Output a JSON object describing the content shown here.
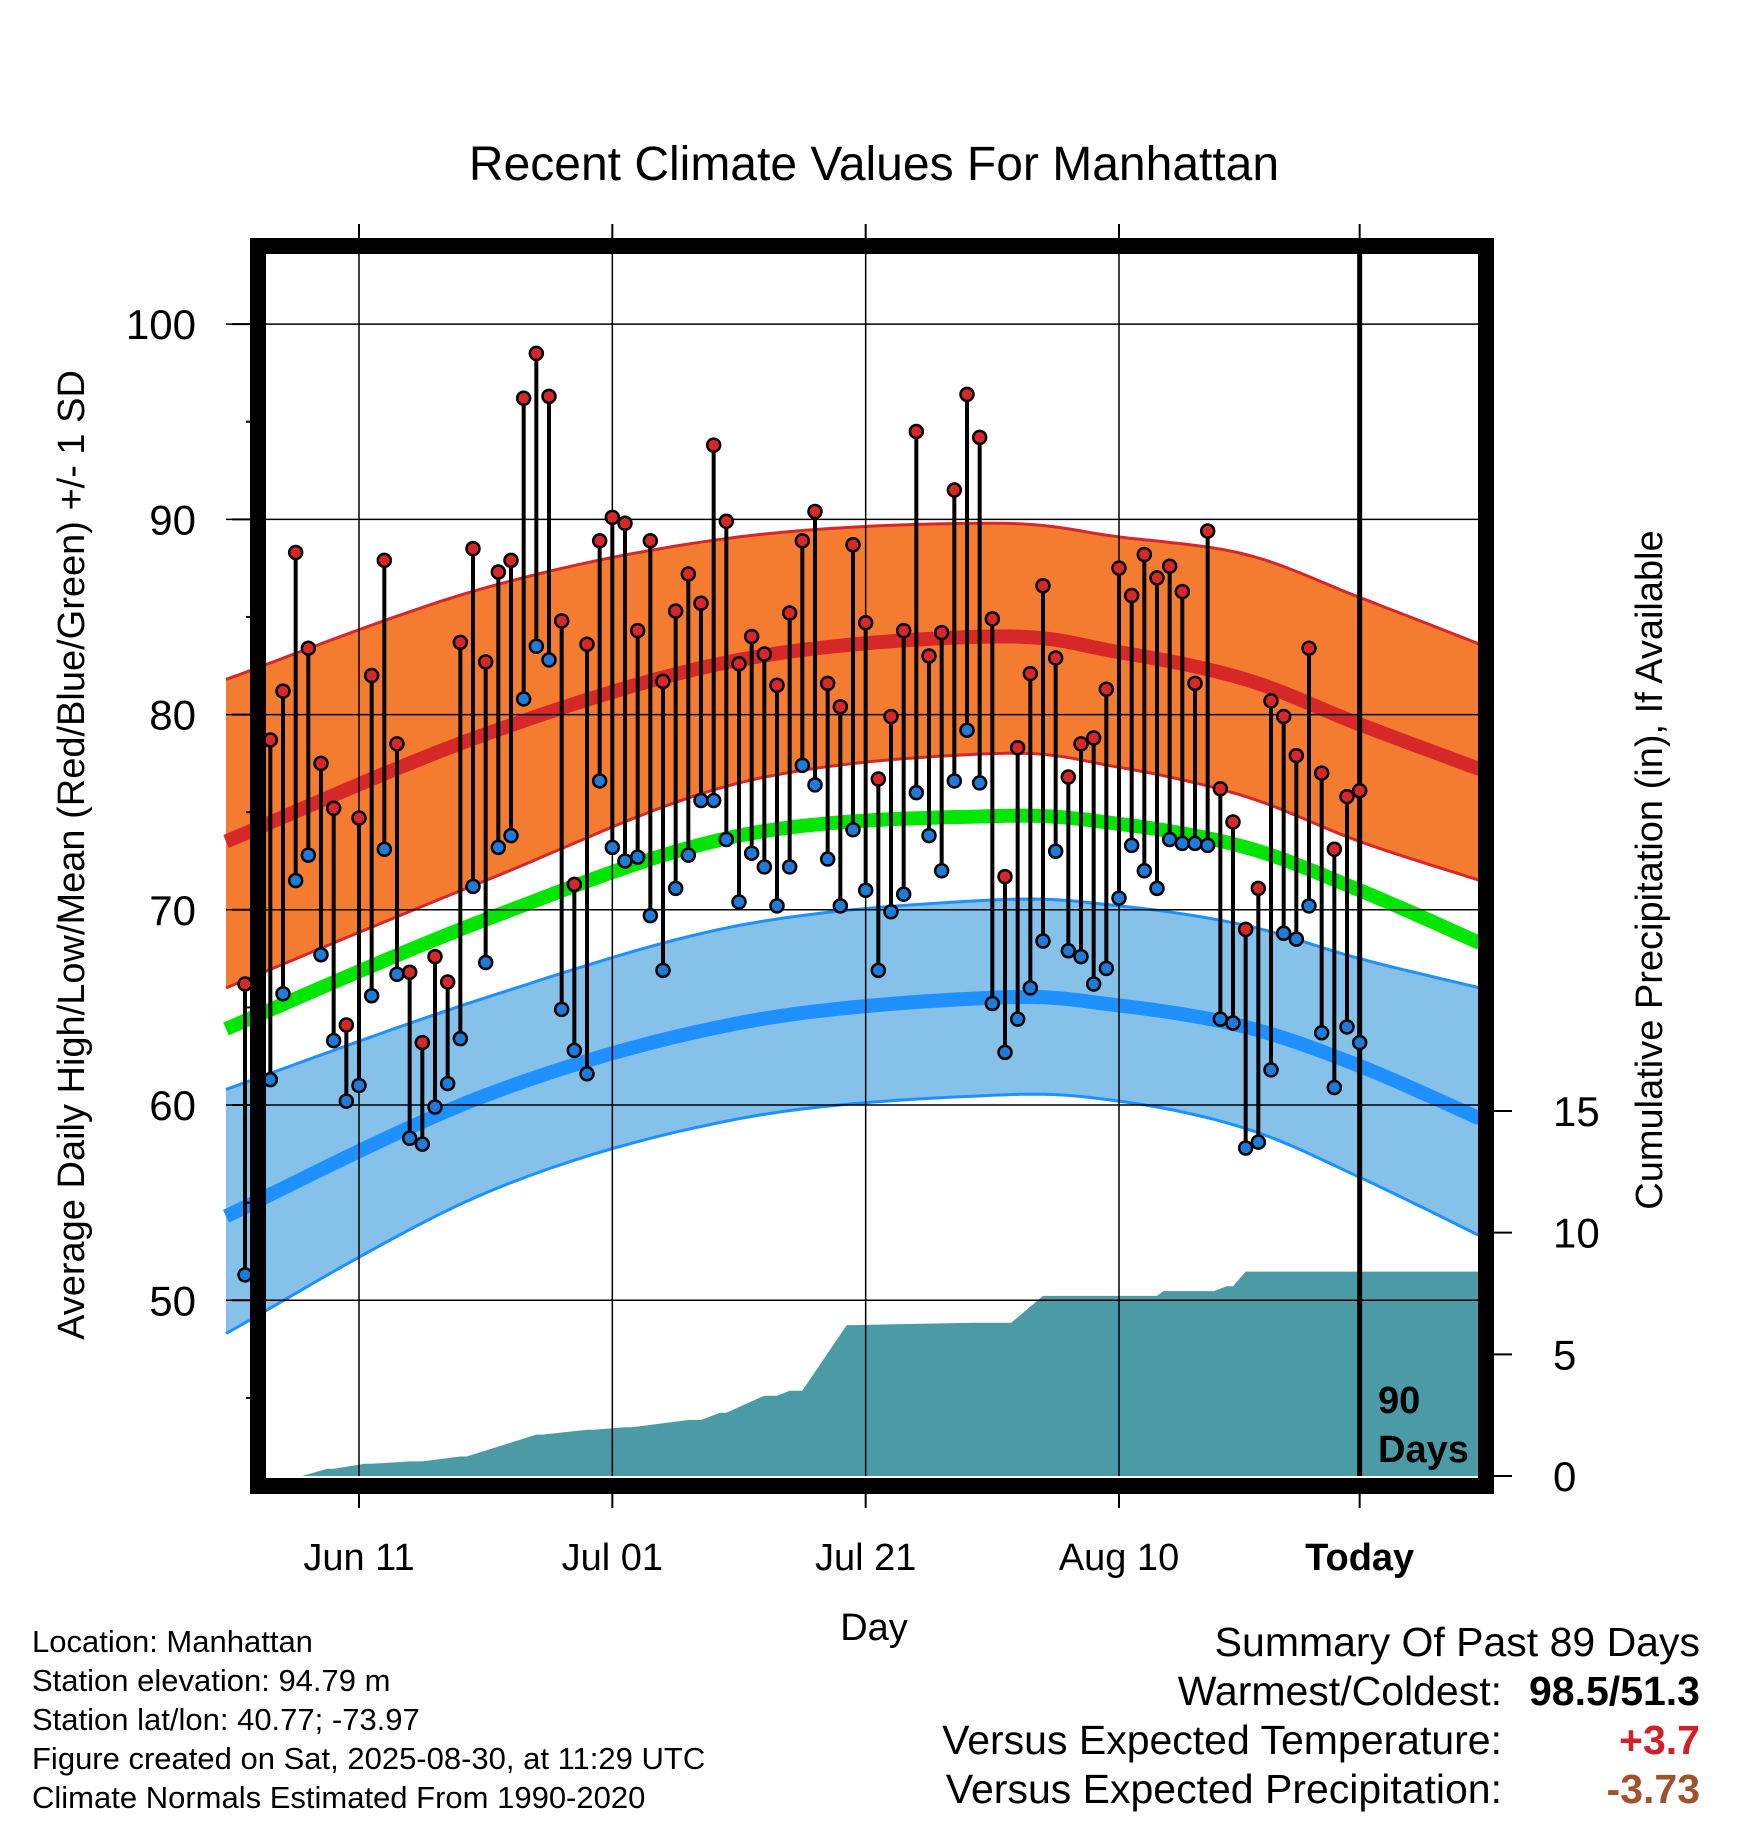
{
  "chart_data": {
    "type": "line",
    "title": "Recent Climate Values For Manhattan",
    "xlabel": "Day",
    "ylabel": "Average Daily High/Low/Mean (Red/Blue/Green) +/- 1 SD",
    "y2label": "Cumulative Precipitation (in), If Available",
    "x_range_days": [
      -89.5,
      9.5
    ],
    "ylim": [
      41,
      104
    ],
    "y2lim": [
      0,
      15
    ],
    "x_tick_days": [
      -79,
      -59,
      -39,
      -19,
      0
    ],
    "x_tick_labels": [
      "Jun 11",
      "Jul 01",
      "Jul 21",
      "Aug 10",
      "Today"
    ],
    "y_ticks": [
      50,
      60,
      70,
      80,
      90,
      100
    ],
    "y2_ticks": [
      0,
      5,
      10,
      15
    ],
    "today_marker_label": "90\nDays",
    "colors": {
      "high_band": "#f47c30",
      "high_band_edge": "#d62828",
      "high_mean": "#d62828",
      "low_band": "#85c1e9",
      "low_band_edge": "#1e90ff",
      "low_mean": "#1e90ff",
      "mean": "#00e600",
      "precip": "#4a9ba6",
      "high_point": "#d62828",
      "low_point": "#1e7bd8"
    },
    "normals": {
      "x_days": [
        -89.5,
        -69,
        -49,
        -29,
        -19,
        -9,
        0,
        9.5
      ],
      "high_mean": [
        73.5,
        79.0,
        82.8,
        84.0,
        83.2,
        81.8,
        79.5,
        77.2
      ],
      "high_sd_upper": [
        81.8,
        86.5,
        89.1,
        89.8,
        89.1,
        88.2,
        86.0,
        83.6
      ],
      "high_sd_lower": [
        66.0,
        71.5,
        76.5,
        78.0,
        77.3,
        75.8,
        73.5,
        71.5
      ],
      "low_mean": [
        54.3,
        60.5,
        64.2,
        65.5,
        65.1,
        64.0,
        62.0,
        59.3
      ],
      "low_sd_upper": [
        60.8,
        65.5,
        69.2,
        70.5,
        70.2,
        69.2,
        67.5,
        66.0
      ],
      "low_sd_lower": [
        48.3,
        55.5,
        59.3,
        60.5,
        60.2,
        58.8,
        56.3,
        53.3
      ],
      "daily_mean": [
        63.9,
        69.5,
        73.8,
        74.8,
        74.4,
        73.2,
        71.0,
        68.3
      ]
    },
    "series": [
      {
        "name": "High",
        "values": [
          66.2,
          72.1,
          78.7,
          81.2,
          88.3,
          83.4,
          77.5,
          75.2,
          64.1,
          74.7,
          82.0,
          87.9,
          78.5,
          66.8,
          63.2,
          67.6,
          66.3,
          83.7,
          88.5,
          82.7,
          87.3,
          87.9,
          96.2,
          98.5,
          96.3,
          84.8,
          71.3,
          83.6,
          88.9,
          90.1,
          89.8,
          84.3,
          88.9,
          81.7,
          85.3,
          87.2,
          85.7,
          93.8,
          89.9,
          82.6,
          84.0,
          83.1,
          81.5,
          85.2,
          88.9,
          90.4,
          81.6,
          80.4,
          88.7,
          84.7,
          76.7,
          79.9,
          84.3,
          94.5,
          83.0,
          84.2,
          91.5,
          96.4,
          94.2,
          84.9,
          71.7,
          78.3,
          82.1,
          86.6,
          82.9,
          76.8,
          78.5,
          78.8,
          81.3,
          87.5,
          86.1,
          88.2,
          87.0,
          87.6,
          86.3,
          81.6,
          89.4,
          76.2,
          74.5,
          69.0,
          71.1,
          80.7,
          79.9,
          77.9,
          83.4,
          77.0,
          73.1,
          75.8,
          76.1
        ]
      },
      {
        "name": "Low",
        "values": [
          51.3,
          56.3,
          61.3,
          65.7,
          71.5,
          72.8,
          67.7,
          63.3,
          60.2,
          61.0,
          65.6,
          73.1,
          66.7,
          58.3,
          58.0,
          59.9,
          61.1,
          63.4,
          71.2,
          67.3,
          73.2,
          73.8,
          80.8,
          83.5,
          82.8,
          64.9,
          62.8,
          61.6,
          76.6,
          73.2,
          72.5,
          72.7,
          69.7,
          66.9,
          71.1,
          72.8,
          75.6,
          75.6,
          73.6,
          70.4,
          72.9,
          72.2,
          70.2,
          72.2,
          77.4,
          76.4,
          72.6,
          70.2,
          74.1,
          71.0,
          66.9,
          69.9,
          70.8,
          76.0,
          73.8,
          72.0,
          76.6,
          79.2,
          76.5,
          65.2,
          62.7,
          64.4,
          66.0,
          68.4,
          73.0,
          67.9,
          67.6,
          66.2,
          67.0,
          70.6,
          73.3,
          72.0,
          71.1,
          73.6,
          73.4,
          73.4,
          73.3,
          64.4,
          64.2,
          57.8,
          58.1,
          61.8,
          68.8,
          68.5,
          70.2,
          63.7,
          60.9,
          64.0,
          63.2
        ]
      }
    ],
    "precip_cumulative": {
      "x_days": [
        -89.5,
        -83.5,
        -81.5,
        -81.0,
        -78.5,
        -78.0,
        -75.0,
        -74.0,
        -71.0,
        -70.5,
        -65.0,
        -64.5,
        -61.0,
        -60.5,
        -58.0,
        -57.5,
        -53.0,
        -52.0,
        -50.5,
        -50.0,
        -47.0,
        -46.0,
        -45.0,
        -44.0,
        -40.5,
        -40.0,
        -30.5,
        -30.0,
        -28.5,
        -27.5,
        -25.0,
        -24.0,
        -16.5,
        -16.0,
        -15.5,
        -14.5,
        -12.0,
        -11.5,
        -10.5,
        -10.0,
        -9.0,
        -8.0,
        9.5
      ],
      "values": [
        0.0,
        0.0,
        0.3,
        0.3,
        0.5,
        0.5,
        0.6,
        0.6,
        0.8,
        0.8,
        1.7,
        1.7,
        1.9,
        1.9,
        2.0,
        2.0,
        2.3,
        2.3,
        2.6,
        2.6,
        3.3,
        3.3,
        3.5,
        3.5,
        6.2,
        6.2,
        6.3,
        6.3,
        6.3,
        6.3,
        7.4,
        7.4,
        7.4,
        7.4,
        7.6,
        7.6,
        7.6,
        7.6,
        7.8,
        7.8,
        8.4,
        8.4,
        8.4
      ]
    }
  },
  "info": {
    "location": "Location: Manhattan",
    "elevation": "Station elevation: 94.79 m",
    "latlon": "Station lat/lon: 40.77; -73.97",
    "created": "Figure created on Sat, 2025-08-30, at 11:29 UTC",
    "normals": "Climate Normals Estimated From 1990-2020"
  },
  "summary": {
    "heading": "Summary Of Past 89 Days",
    "warmest_coldest_label": "Warmest/Coldest:",
    "warmest_coldest_value": "98.5/51.3",
    "temp_label": "Versus Expected Temperature:",
    "temp_value": "+3.7",
    "precip_label": "Versus Expected Precipitation:",
    "precip_value": "-3.73"
  }
}
